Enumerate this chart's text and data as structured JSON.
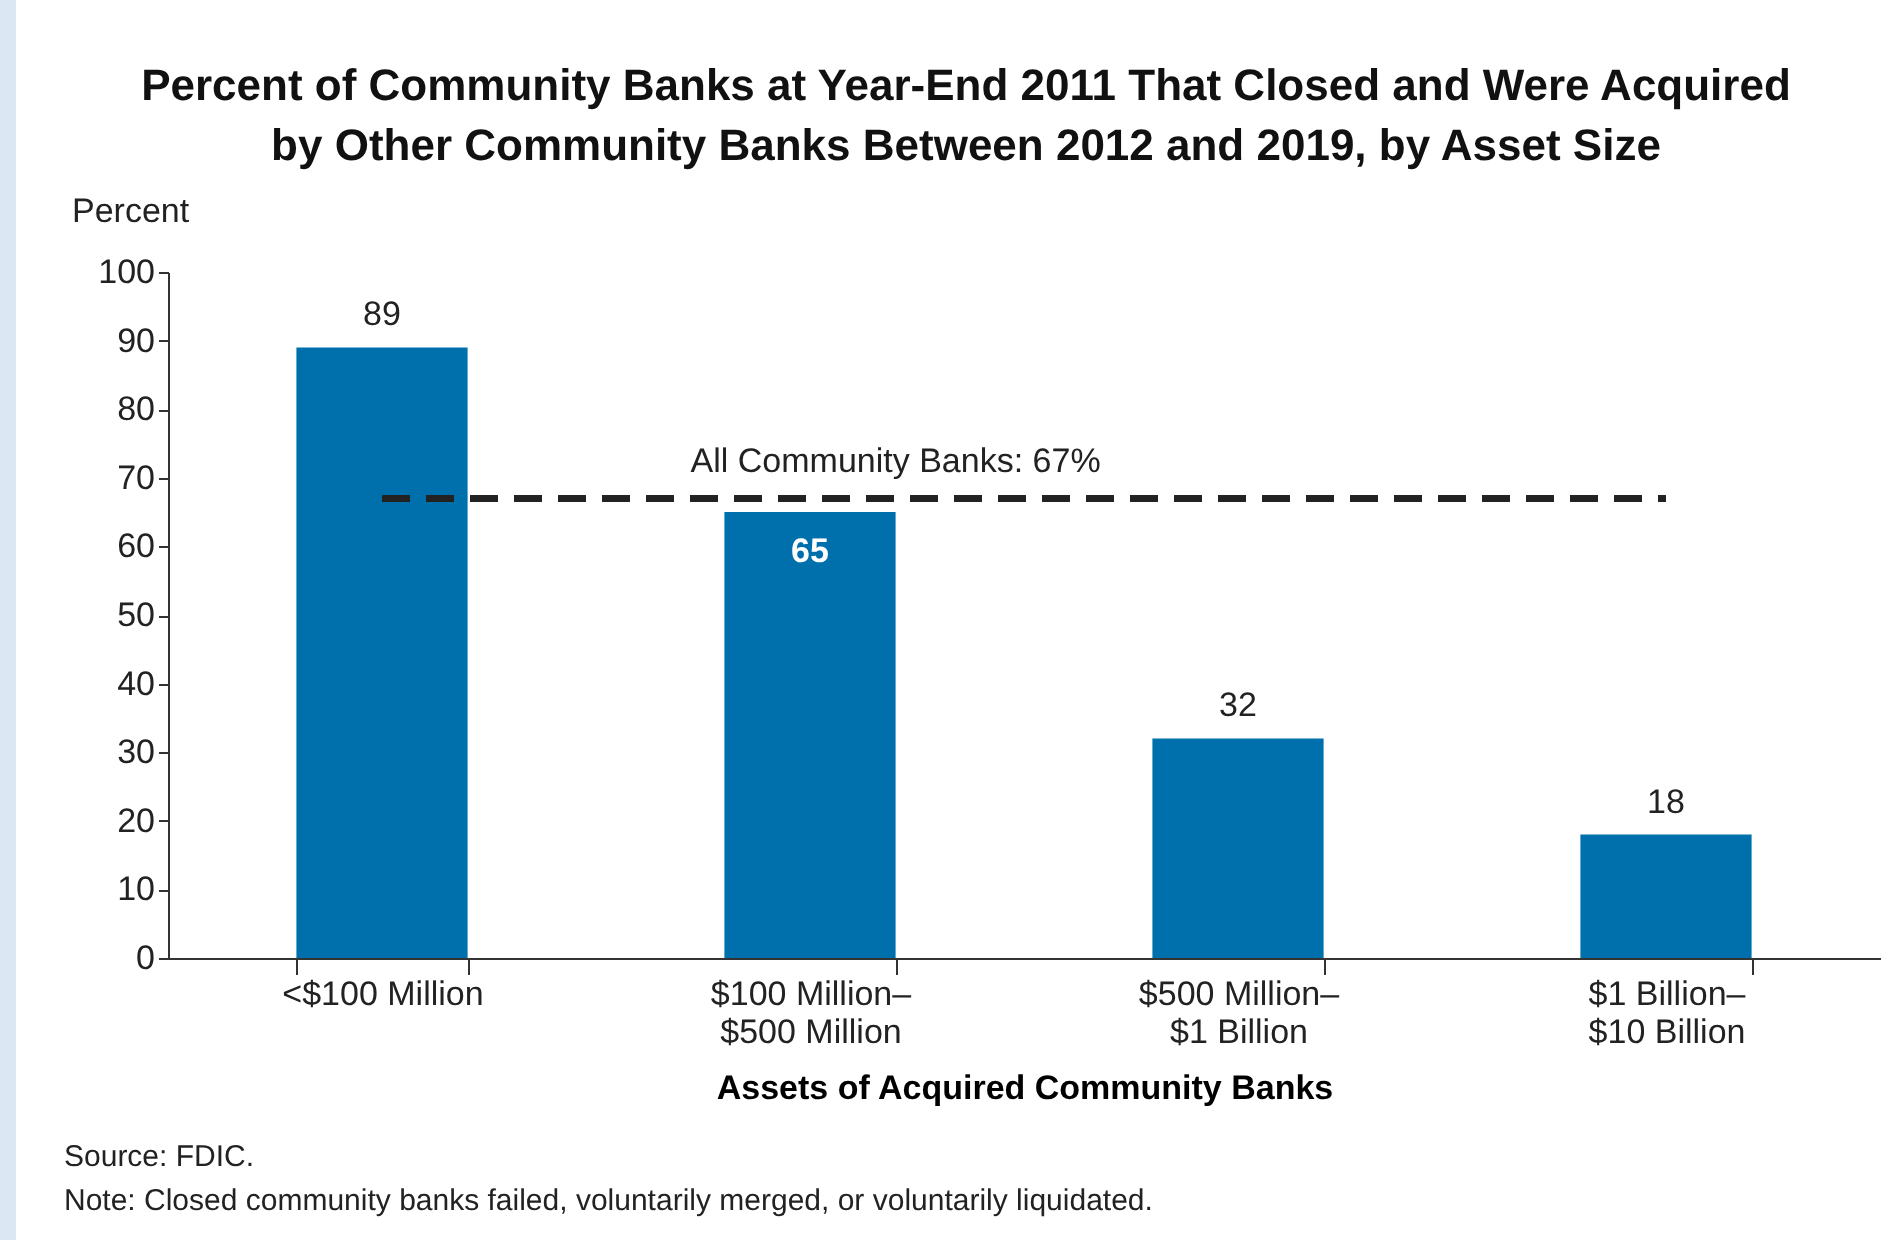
{
  "chart_data": {
    "type": "bar",
    "title": "Percent of Community Banks at Year-End 2011 That Closed and Were Acquired by Other Community Banks Between 2012 and 2019, by Asset Size",
    "xlabel": "Assets of Acquired Community Banks",
    "ylabel": "Percent",
    "categories": [
      "<$100 Million",
      "$100 Million–$500 Million",
      "$500 Million–$1 Billion",
      "$1 Billion–$10 Billion"
    ],
    "values": [
      89,
      65,
      32,
      18
    ],
    "color": "#0070ad",
    "data_labels": true,
    "ylim": [
      0,
      100
    ],
    "yticks": [
      0,
      10,
      20,
      30,
      40,
      50,
      60,
      70,
      80,
      90,
      100
    ],
    "grid": false,
    "ref_lines": [
      {
        "axis": "y",
        "value": 67,
        "label": "All Community Banks: 67%",
        "color": "#222222",
        "line_style": "dashed"
      }
    ],
    "annotations": [
      "Source: FDIC.",
      "Note: Closed community banks failed, voluntarily merged, or voluntarily liquidated."
    ]
  }
}
